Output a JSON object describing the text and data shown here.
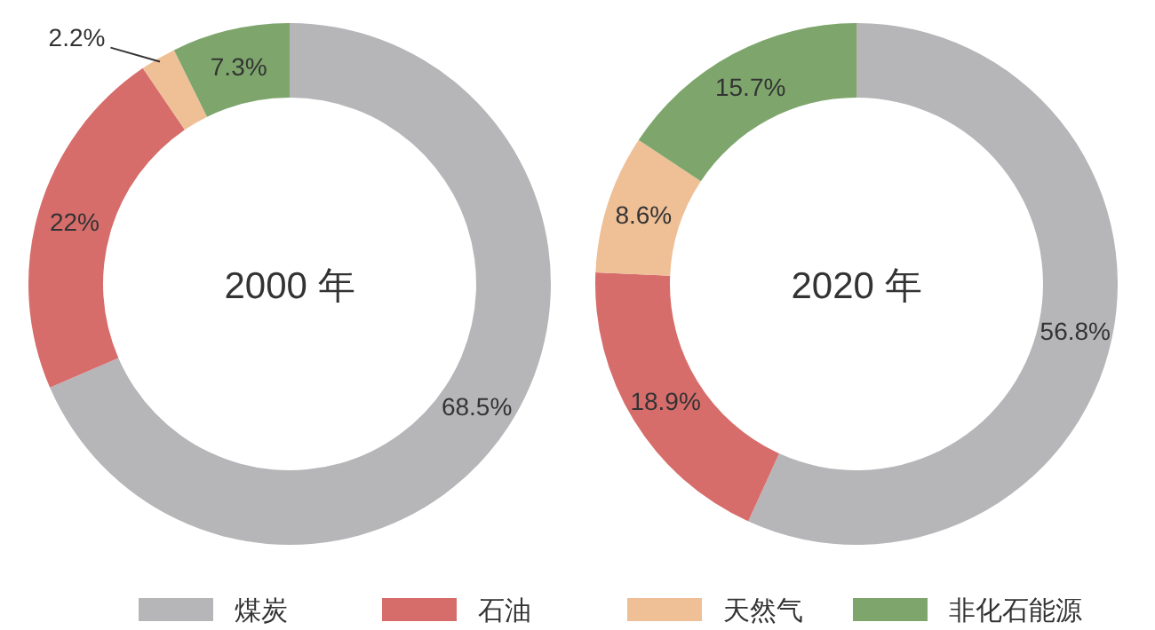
{
  "chart_data": [
    {
      "type": "donut",
      "title": "2000 年",
      "categories": [
        "煤炭",
        "石油",
        "天然气",
        "非化石能源"
      ],
      "values": [
        68.5,
        22,
        2.2,
        7.3
      ],
      "value_labels": [
        "68.5%",
        "22%",
        "2.2%",
        "7.3%"
      ],
      "colors": [
        "#b6b6b9",
        "#d66d6b",
        "#efbf96",
        "#7ea66c"
      ],
      "legend": "bottom"
    },
    {
      "type": "donut",
      "title": "2020 年",
      "categories": [
        null,
        null,
        null,
        null
      ],
      "values": [
        56.8,
        18.9,
        8.6,
        15.7
      ],
      "value_labels": [
        "56.8%",
        "18.9%",
        "8.6%",
        "15.7%"
      ],
      "colors": [
        "#b6b6b9",
        "#d66d6b",
        "#efbf96",
        "#7ea66c"
      ]
    }
  ]
}
